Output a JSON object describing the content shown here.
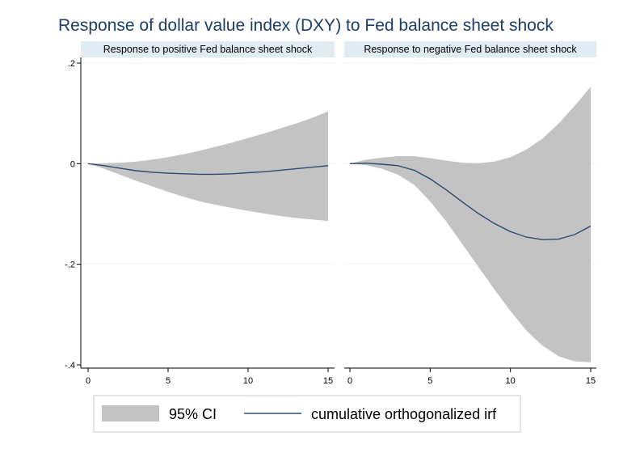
{
  "chart_data": {
    "type": "area",
    "title": "Response of dollar value index (DXY) to Fed balance sheet shock",
    "xlim": [
      0,
      15
    ],
    "ylim": [
      -0.4,
      0.2
    ],
    "x_ticks": [
      0,
      5,
      10,
      15
    ],
    "x_tick_labels": [
      "0",
      "5",
      "10",
      "15"
    ],
    "y_ticks": [
      0.2,
      0,
      -0.2,
      -0.4
    ],
    "y_tick_labels": [
      ".2",
      "0",
      "-.2",
      "-.4"
    ],
    "grid": true,
    "legend": {
      "position": "bottom",
      "entries": [
        "95% CI",
        "cumulative orthogonalized irf"
      ]
    },
    "panels": [
      {
        "label": "Response to positive Fed balance sheet shock",
        "series": [
          {
            "name": "cumulative orthogonalized irf",
            "type": "line",
            "x": [
              0,
              1,
              2,
              3,
              4,
              5,
              6,
              7,
              8,
              9,
              10,
              11,
              12,
              13,
              14,
              15
            ],
            "y": [
              0,
              -0.004,
              -0.009,
              -0.014,
              -0.017,
              -0.019,
              -0.02,
              -0.021,
              -0.021,
              -0.02,
              -0.018,
              -0.016,
              -0.013,
              -0.01,
              -0.007,
              -0.004
            ]
          },
          {
            "name": "95% CI",
            "type": "band",
            "x": [
              0,
              1,
              2,
              3,
              4,
              5,
              6,
              7,
              8,
              9,
              10,
              11,
              12,
              13,
              14,
              15
            ],
            "lower": [
              0,
              -0.01,
              -0.022,
              -0.034,
              -0.045,
              -0.056,
              -0.066,
              -0.075,
              -0.082,
              -0.088,
              -0.094,
              -0.099,
              -0.104,
              -0.108,
              -0.111,
              -0.114
            ],
            "upper": [
              0,
              0.001,
              0.002,
              0.004,
              0.008,
              0.013,
              0.019,
              0.026,
              0.034,
              0.042,
              0.051,
              0.06,
              0.07,
              0.08,
              0.091,
              0.104
            ]
          }
        ]
      },
      {
        "label": "Response to negative Fed balance sheet shock",
        "series": [
          {
            "name": "cumulative orthogonalized irf",
            "type": "line",
            "x": [
              0,
              1,
              2,
              3,
              4,
              5,
              6,
              7,
              8,
              9,
              10,
              11,
              12,
              13,
              14,
              15
            ],
            "y": [
              0,
              0.001,
              -0.001,
              -0.004,
              -0.013,
              -0.03,
              -0.052,
              -0.076,
              -0.099,
              -0.119,
              -0.135,
              -0.146,
              -0.151,
              -0.15,
              -0.141,
              -0.124
            ]
          },
          {
            "name": "95% CI",
            "type": "band",
            "x": [
              0,
              1,
              2,
              3,
              4,
              5,
              6,
              7,
              8,
              9,
              10,
              11,
              12,
              13,
              14,
              15
            ],
            "lower": [
              0,
              -0.003,
              -0.01,
              -0.022,
              -0.042,
              -0.075,
              -0.115,
              -0.16,
              -0.205,
              -0.25,
              -0.293,
              -0.332,
              -0.362,
              -0.383,
              -0.393,
              -0.395
            ],
            "upper": [
              0,
              0.008,
              0.012,
              0.015,
              0.015,
              0.011,
              0.006,
              0.002,
              0.001,
              0.004,
              0.013,
              0.028,
              0.05,
              0.08,
              0.115,
              0.153
            ]
          }
        ]
      }
    ]
  },
  "colors": {
    "title": "#1f3d66",
    "ci_band": "#c3c3c3",
    "irf_line": "#2d4a74",
    "panel_strip": "#e1ebf2",
    "gridline": "#eef2f5"
  }
}
